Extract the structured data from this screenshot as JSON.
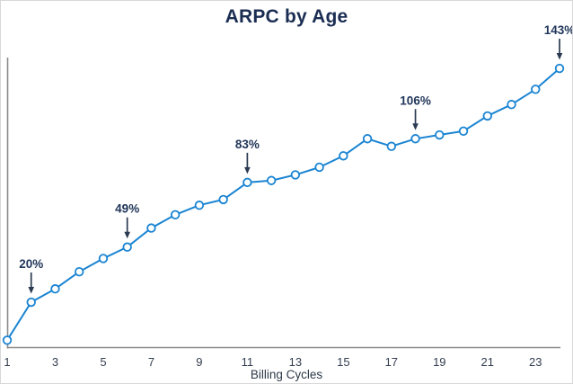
{
  "chart_data": {
    "type": "line",
    "title": "ARPC by Age",
    "xlabel": "Billing Cycles",
    "ylabel": "",
    "x": [
      1,
      2,
      3,
      4,
      5,
      6,
      7,
      8,
      9,
      10,
      11,
      12,
      13,
      14,
      15,
      16,
      17,
      18,
      19,
      20,
      21,
      22,
      23,
      24
    ],
    "values": [
      0,
      20,
      27,
      36,
      43,
      49,
      59,
      66,
      71,
      74,
      83,
      84,
      87,
      91,
      97,
      106,
      102,
      106,
      108,
      110,
      118,
      124,
      132,
      143
    ],
    "values_unit": "%",
    "x_ticks": [
      1,
      3,
      5,
      7,
      9,
      11,
      13,
      15,
      17,
      19,
      21,
      23
    ],
    "ylim": [
      0,
      150
    ],
    "grid": false,
    "legend": "none",
    "annotations": [
      {
        "x": 2,
        "label": "20%"
      },
      {
        "x": 6,
        "label": "49%"
      },
      {
        "x": 11,
        "label": "83%"
      },
      {
        "x": 18,
        "label": "106%"
      },
      {
        "x": 24,
        "label": "143%"
      }
    ],
    "colors": {
      "line": "#1a84d2",
      "marker_fill": "#ffffff",
      "marker_stroke": "#1a84d2",
      "axis": "#8a8a8a",
      "tick_text": "#333e4e",
      "annotation_text": "#21365a",
      "annotation_arrow": "#2b3a50",
      "title_text": "#1b2d52",
      "background": "#ffffff"
    }
  }
}
